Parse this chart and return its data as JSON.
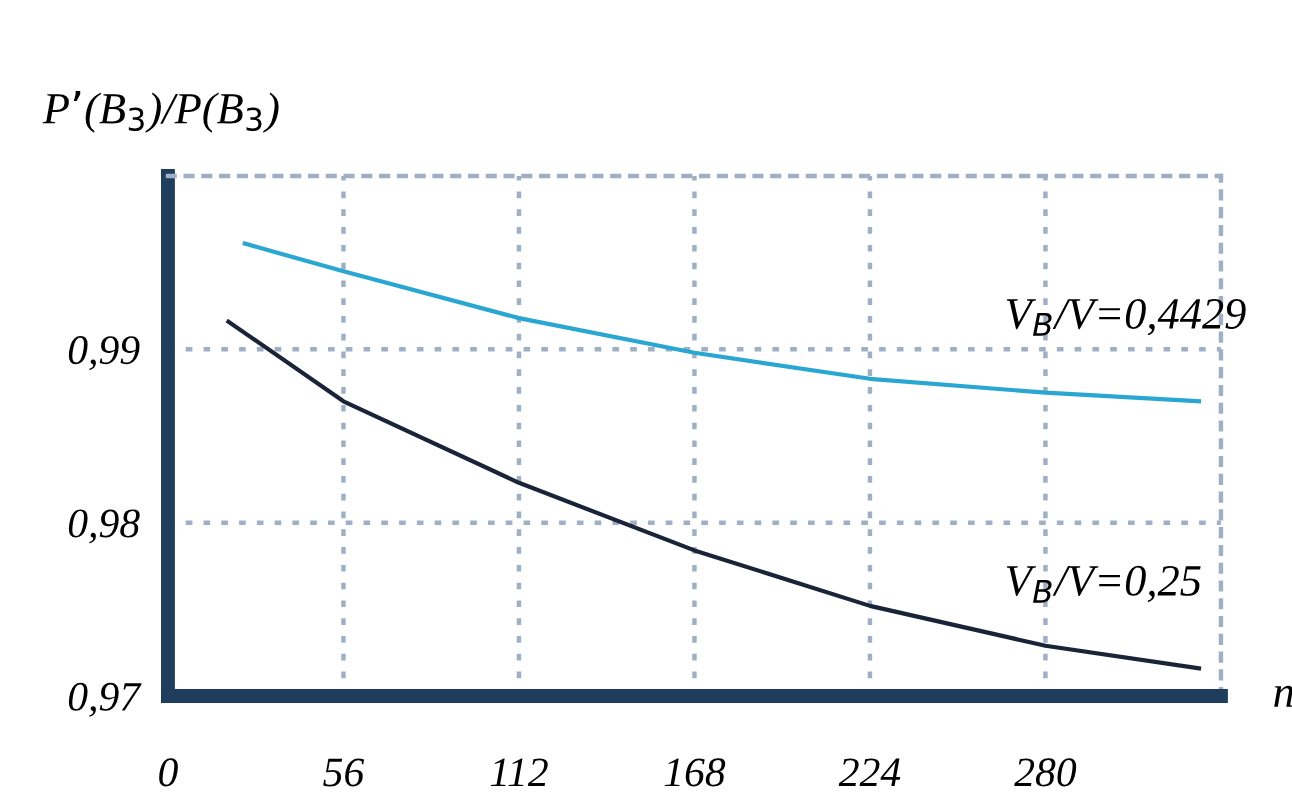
{
  "chart_data": {
    "type": "line",
    "ylabel": "P’(B$_{3}$)/P(B$_{3}$)",
    "xlabel": "n",
    "xlim": [
      0,
      336
    ],
    "ylim": [
      0.97,
      1.0
    ],
    "xticks": [
      0,
      56,
      112,
      168,
      224,
      280
    ],
    "yticks": [
      {
        "value": 0.97,
        "label": "0,97"
      },
      {
        "value": 0.98,
        "label": "0,98"
      },
      {
        "value": 0.99,
        "label": "0,99"
      }
    ],
    "grid": true,
    "marker": "none",
    "line_style": "solid",
    "series": [
      {
        "color": "#2aa6d2",
        "x": [
          24.5,
          56,
          112,
          168,
          224,
          280,
          329
        ],
        "values": [
          0.9961,
          0.9945,
          0.9918,
          0.9898,
          0.9883,
          0.9875,
          0.987
        ]
      },
      {
        "color": "#1a2438",
        "x": [
          19.3,
          56,
          112,
          168,
          224,
          280,
          329
        ],
        "values": [
          0.9916,
          0.987,
          0.9823,
          0.9784,
          0.9752,
          0.9729,
          0.9716
        ]
      }
    ],
    "annotations": [
      "V$_{B}$/V=0,4429",
      "V$_{B}$/V=0,25"
    ]
  }
}
